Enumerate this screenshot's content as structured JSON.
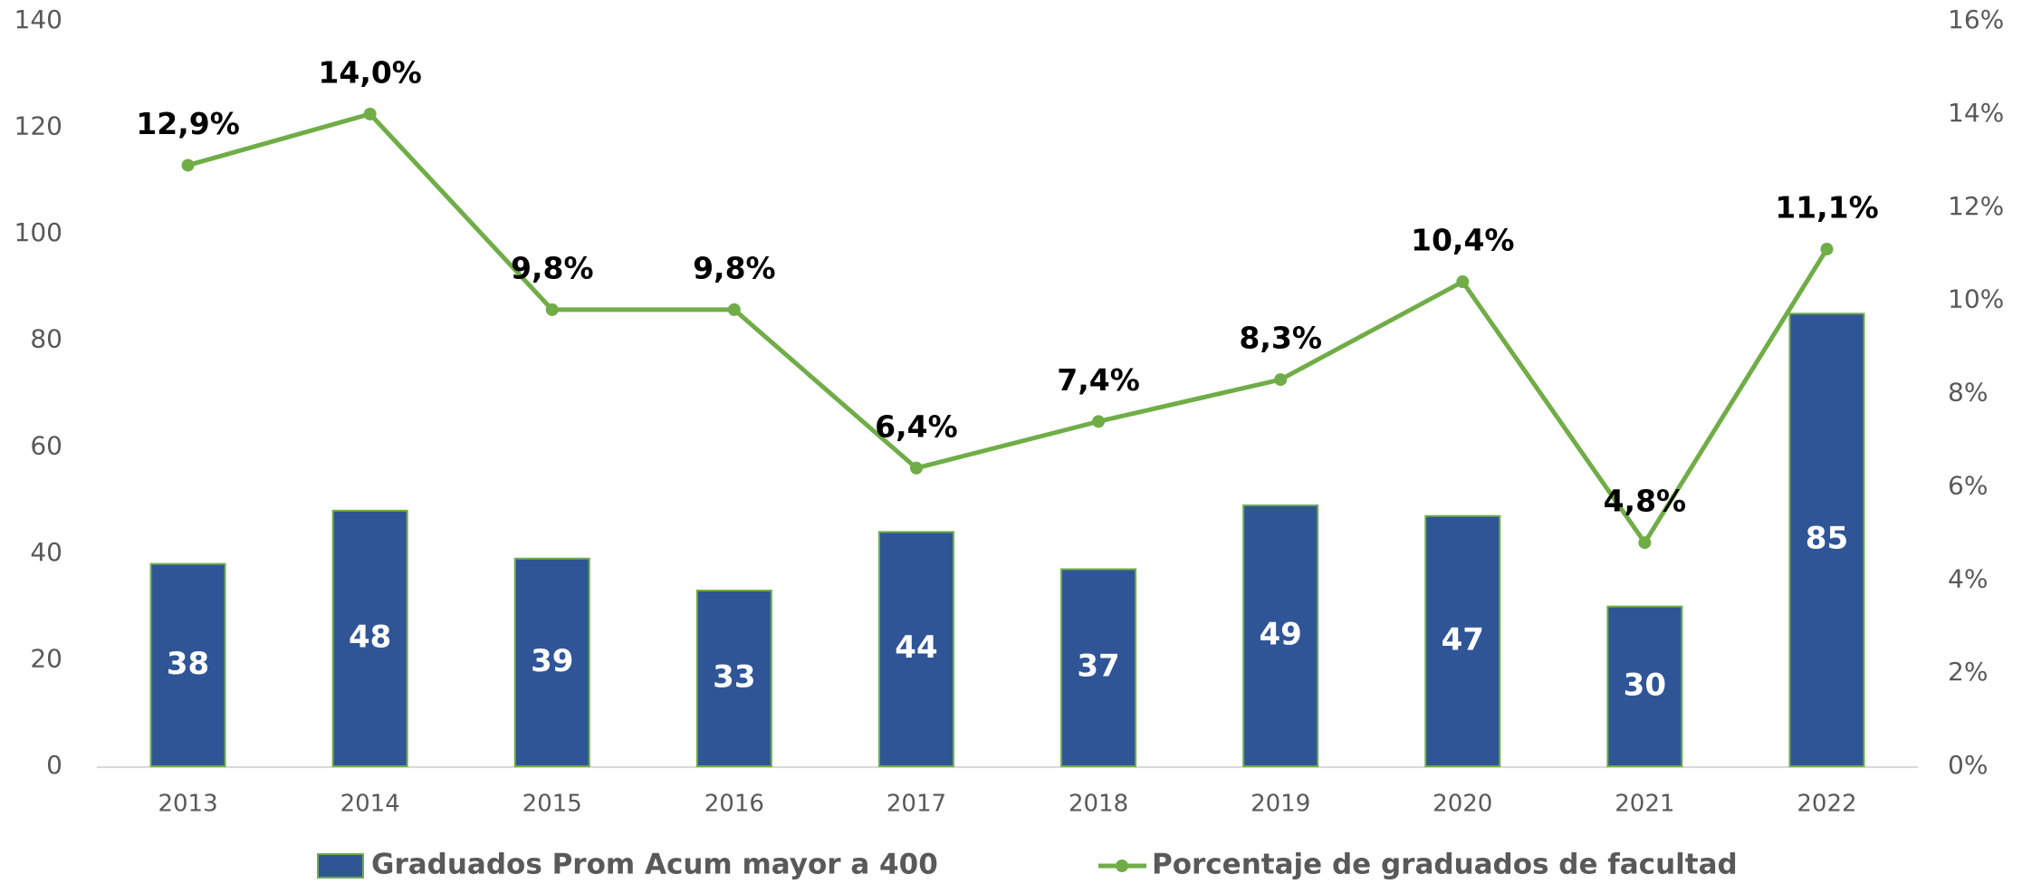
{
  "chart_data": {
    "type": "bar_line",
    "categories": [
      "2013",
      "2014",
      "2015",
      "2016",
      "2017",
      "2018",
      "2019",
      "2020",
      "2021",
      "2022"
    ],
    "series": [
      {
        "name": "Graduados Prom Acum mayor a 400",
        "type": "bar",
        "color": "#2f5597",
        "edge_color": "#70ad47",
        "values": [
          38,
          48,
          39,
          33,
          44,
          37,
          49,
          47,
          30,
          85
        ]
      },
      {
        "name": "Porcentaje de graduados de facultad",
        "type": "line",
        "axis": "y2",
        "color": "#70ad47",
        "values": [
          12.9,
          14.0,
          9.8,
          9.8,
          6.4,
          7.4,
          8.3,
          10.4,
          4.8,
          11.1
        ],
        "value_labels": [
          "12,9%",
          "14,0%",
          "9,8%",
          "9,8%",
          "6,4%",
          "7,4%",
          "8,3%",
          "10,4%",
          "4,8%",
          "11,1%"
        ]
      }
    ],
    "ylim": [
      0,
      140
    ],
    "yticks": [
      0,
      20,
      40,
      60,
      80,
      100,
      120,
      140
    ],
    "y2lim": [
      0,
      16
    ],
    "y2ticks": [
      {
        "value": 0,
        "label": "0%"
      },
      {
        "value": 2,
        "label": "2%"
      },
      {
        "value": 4,
        "label": "4%"
      },
      {
        "value": 6,
        "label": "6%"
      },
      {
        "value": 8,
        "label": "8%"
      },
      {
        "value": 10,
        "label": "10%"
      },
      {
        "value": 12,
        "label": "12%"
      },
      {
        "value": 14,
        "label": "14%"
      },
      {
        "value": 16,
        "label": "16%"
      }
    ],
    "grid": false,
    "legend": "bottom"
  }
}
